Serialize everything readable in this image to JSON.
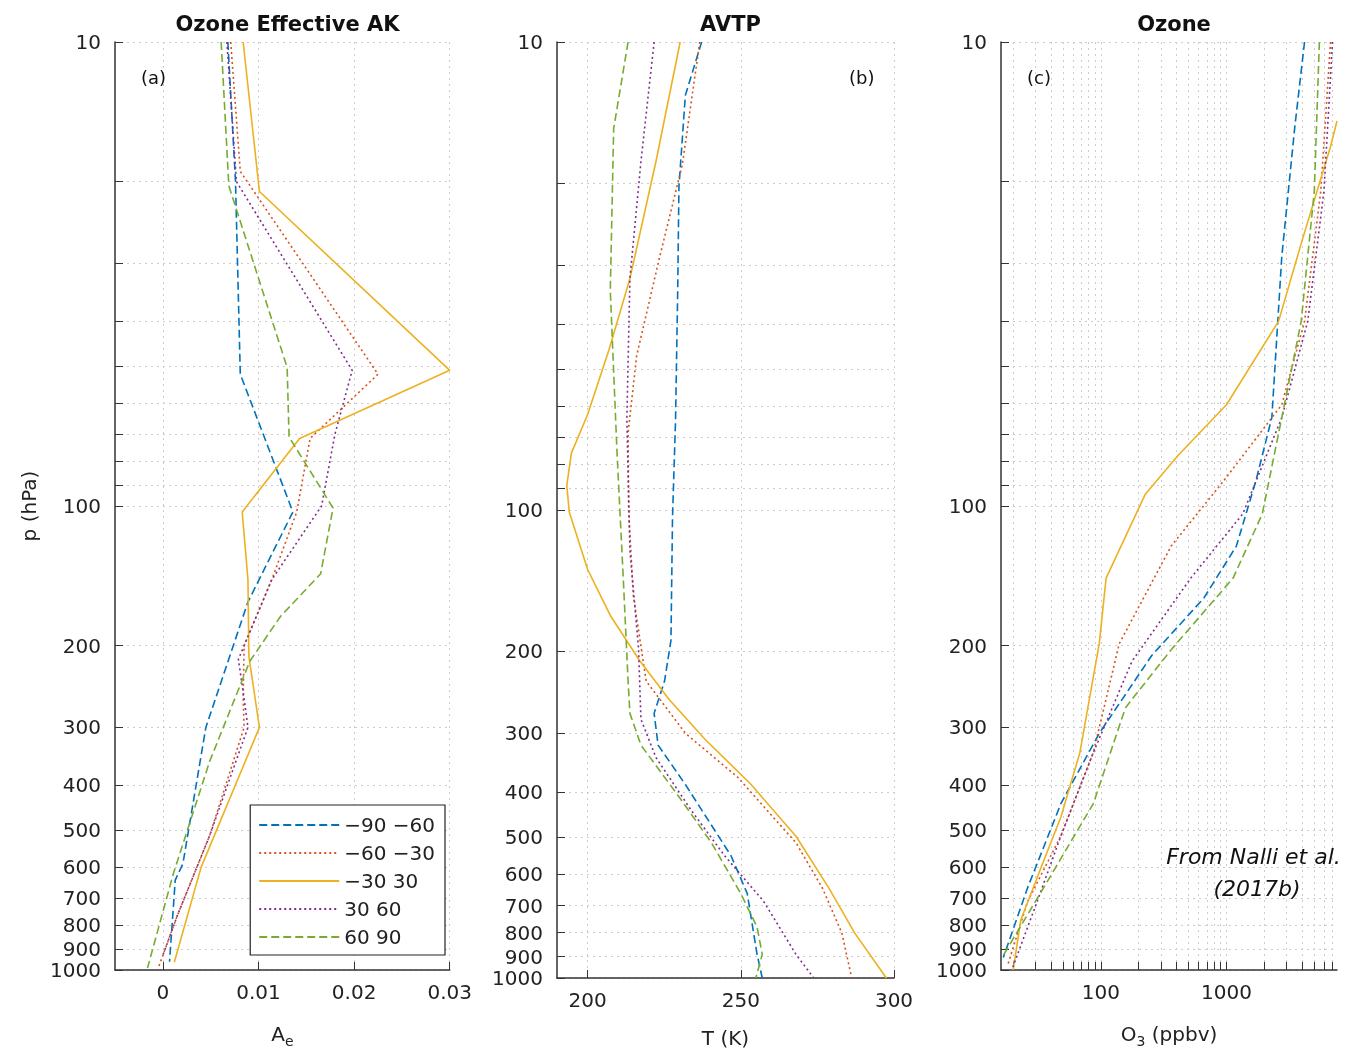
{
  "chart_data": [
    {
      "type": "line",
      "title": "Ozone Effective AK",
      "xlabel": "A$_{e}$",
      "ylabel": "p (hPa)",
      "log": "y",
      "xlim": [
        -0.005,
        0.03
      ],
      "xticks": [
        0,
        0.01,
        0.02,
        0.03
      ],
      "ylim": [
        1000,
        10
      ],
      "yticks": [
        10,
        {
          "value": 20,
          "label": null
        },
        {
          "value": 30,
          "label": null
        },
        {
          "value": 40,
          "label": null
        },
        {
          "value": 50,
          "label": null
        },
        {
          "value": 60,
          "label": null
        },
        {
          "value": 70,
          "label": null
        },
        {
          "value": 80,
          "label": null
        },
        {
          "value": 90,
          "label": null
        },
        100,
        200,
        300,
        400,
        500,
        600,
        700,
        800,
        900,
        1000
      ],
      "grid": true,
      "legend": "bottom right",
      "marker": "none",
      "annotations": [
        "(a)"
      ],
      "series": [
        {
          "name": "−90 −60",
          "color": "#0072bd",
          "line_style": "dashed",
          "x": [
            0.0068,
            0.0076,
            0.0081,
            0.0136,
            0.0089,
            0.0045,
            0.0021,
            0.0013,
            0.0007
          ],
          "values": [
            10,
            20,
            52,
            103,
            161,
            300,
            590,
            640,
            960
          ]
        },
        {
          "name": "−60 −30",
          "color": "#d95319",
          "line_style": "dotted",
          "x": [
            0.0071,
            0.0081,
            0.0225,
            0.0154,
            0.014,
            0.0114,
            0.0085,
            0.0084,
            0.0085,
            0.0049,
            0.0015,
            -0.0004
          ],
          "values": [
            10,
            19,
            52,
            71.5,
            103,
            144,
            200,
            261,
            300,
            513,
            765,
            980
          ]
        },
        {
          "name": "−30 30",
          "color": "#edb120",
          "line_style": "solid",
          "x": [
            0.0084,
            0.0101,
            0.03,
            0.0143,
            0.0083,
            0.0089,
            0.009,
            0.0101,
            0.004,
            0.0012
          ],
          "values": [
            10,
            21,
            51,
            71.5,
            103,
            144,
            211,
            300,
            601,
            962
          ]
        },
        {
          "name": "30 60",
          "color": "#7e2f8e",
          "line_style": "dotted",
          "x": [
            0.0067,
            0.0077,
            0.0198,
            0.018,
            0.0166,
            0.0114,
            0.0079,
            0.0085,
            0.0089,
            0.0049,
            0.0015,
            0.0
          ],
          "values": [
            10,
            20,
            51,
            70,
            100,
            144,
            214,
            260,
            300,
            513,
            765,
            930
          ]
        },
        {
          "name": "60 90",
          "color": "#77ac30",
          "line_style": "dashed",
          "x": [
            0.0061,
            0.0069,
            0.013,
            0.0132,
            0.0178,
            0.0165,
            0.0123,
            0.0091,
            0.0049,
            0.0011,
            -0.0016
          ],
          "values": [
            10,
            20.4,
            50.3,
            71,
            101,
            140,
            173,
            216,
            355,
            620,
            990
          ]
        }
      ]
    },
    {
      "type": "line",
      "title": "AVTP",
      "xlabel": "T (K)",
      "log": "y",
      "xlim": [
        190,
        300
      ],
      "xticks": [
        200,
        250,
        300
      ],
      "ylim": [
        1000,
        10
      ],
      "yticks": [
        10,
        {
          "value": 20,
          "label": null
        },
        {
          "value": 30,
          "label": null
        },
        {
          "value": 40,
          "label": null
        },
        {
          "value": 50,
          "label": null
        },
        {
          "value": 60,
          "label": null
        },
        {
          "value": 70,
          "label": null
        },
        {
          "value": 80,
          "label": null
        },
        {
          "value": 90,
          "label": null
        },
        100,
        200,
        300,
        400,
        500,
        600,
        700,
        800,
        900,
        1000
      ],
      "grid": true,
      "marker": "none",
      "annotations": [
        "(b)"
      ],
      "series": [
        {
          "color": "#0072bd",
          "line_style": "dashed",
          "x": [
            237.2,
            231.9,
            229.8,
            229.4,
            228.7,
            227.7,
            227.2,
            225.1,
            221.7,
            223,
            231.9,
            246.8,
            252.1,
            255.3,
            257
          ],
          "values": [
            10,
            13,
            20.4,
            34,
            64,
            104,
            190,
            232,
            272,
            318,
            386,
            548,
            660,
            890,
            1000
          ]
        },
        {
          "color": "#d95319",
          "line_style": "dotted",
          "x": [
            236.6,
            230.9,
            223.4,
            216,
            213.2,
            213.4,
            214.9,
            219.1,
            231.9,
            248.9,
            268,
            276.6,
            283,
            286.2
          ],
          "values": [
            10,
            18.3,
            29,
            46.8,
            68.5,
            101,
            152,
            232,
            300,
            372,
            514,
            642,
            802,
            1000
          ]
        },
        {
          "color": "#edb120",
          "line_style": "solid",
          "x": [
            230.2,
            222.3,
            213.8,
            207,
            200,
            194.7,
            193.2,
            194,
            200,
            207.4,
            217,
            226.6,
            238.3,
            253.2,
            268,
            278.7,
            287.2,
            297.5
          ],
          "values": [
            10,
            18,
            32,
            45.4,
            62.5,
            75.6,
            88.6,
            101,
            134,
            168,
            210,
            254,
            309,
            385,
            498,
            642,
            802,
            1000
          ]
        },
        {
          "color": "#7e2f8e",
          "line_style": "dotted",
          "x": [
            221.7,
            217.4,
            213.8,
            212.8,
            213.8,
            216.6,
            217.4,
            222.3,
            234,
            244.7,
            257.4,
            268,
            273.8
          ],
          "values": [
            10,
            18,
            32,
            64,
            122,
            197,
            280,
            338,
            440,
            548,
            685,
            890,
            1000
          ]
        },
        {
          "color": "#77ac30",
          "line_style": "dashed",
          "x": [
            213.2,
            208.5,
            207.4,
            209.6,
            211.7,
            213.2,
            213.8,
            217.4,
            229.8,
            240.4,
            250,
            255.3,
            257,
            254.9
          ],
          "values": [
            10,
            15.3,
            34,
            75.6,
            143,
            232,
            272,
            318,
            410,
            514,
            660,
            778,
            890,
            1000
          ]
        }
      ]
    },
    {
      "type": "line",
      "title": "Ozone",
      "xlabel": "O$_{3}$ (ppbv)",
      "log": "xy",
      "xlim": [
        16,
        7600
      ],
      "xticks": [
        {
          "value": 20,
          "label": null
        },
        {
          "value": 30,
          "label": null
        },
        {
          "value": 40,
          "label": null
        },
        {
          "value": 50,
          "label": null
        },
        {
          "value": 60,
          "label": null
        },
        {
          "value": 70,
          "label": null
        },
        {
          "value": 80,
          "label": null
        },
        {
          "value": 90,
          "label": null
        },
        100,
        {
          "value": 200,
          "label": null
        },
        {
          "value": 300,
          "label": null
        },
        {
          "value": 400,
          "label": null
        },
        {
          "value": 500,
          "label": null
        },
        {
          "value": 600,
          "label": null
        },
        {
          "value": 700,
          "label": null
        },
        {
          "value": 800,
          "label": null
        },
        {
          "value": 900,
          "label": null
        },
        1000,
        {
          "value": 2000,
          "label": null
        },
        {
          "value": 3000,
          "label": null
        },
        {
          "value": 4000,
          "label": null
        },
        {
          "value": 5000,
          "label": null
        },
        {
          "value": 6000,
          "label": null
        },
        {
          "value": 7000,
          "label": null
        }
      ],
      "ylim": [
        1000,
        10
      ],
      "yticks": [
        10,
        {
          "value": 20,
          "label": null
        },
        {
          "value": 30,
          "label": null
        },
        {
          "value": 40,
          "label": null
        },
        {
          "value": 50,
          "label": null
        },
        {
          "value": 60,
          "label": null
        },
        {
          "value": 70,
          "label": null
        },
        {
          "value": 80,
          "label": null
        },
        {
          "value": 90,
          "label": null
        },
        100,
        200,
        300,
        400,
        500,
        600,
        700,
        800,
        900,
        1000
      ],
      "grid": true,
      "marker": "none",
      "annotations": [
        "(c)",
        "From Nalli et al. (2017b)"
      ],
      "series": [
        {
          "color": "#0072bd",
          "line_style": "dashed",
          "x": [
            4190,
            3500,
            2760,
            2300,
            1710,
            1200,
            660,
            254,
            97,
            48,
            26,
            16.7
          ],
          "values": [
            10,
            15.3,
            29,
            64.5,
            88.6,
            122,
            158,
            210,
            309,
            438,
            666,
            940
          ]
        },
        {
          "color": "#d95319",
          "line_style": "dotted",
          "x": [
            6750,
            5640,
            4190,
            2760,
            940,
            363,
            140,
            87,
            48,
            26,
            18
          ],
          "values": [
            10,
            21,
            40,
            60.5,
            88.6,
            122,
            198,
            340,
            514,
            713,
            980
          ]
        },
        {
          "color": "#edb120",
          "line_style": "solid",
          "x": [
            7600,
            6750,
            3940,
            2600,
            1000,
            408,
            225,
            110,
            97,
            68,
            48,
            33,
            23,
            20
          ],
          "values": [
            14.8,
            16.8,
            27.2,
            40,
            60.5,
            78,
            94.5,
            143,
            198,
            340,
            468,
            606,
            780,
            1000
          ]
        },
        {
          "color": "#7e2f8e",
          "line_style": "dotted",
          "x": [
            7000,
            5980,
            4440,
            2760,
            1350,
            520,
            177,
            87,
            48,
            31,
            19.5
          ],
          "values": [
            10,
            21,
            40,
            64.5,
            104,
            143,
            216,
            340,
            514,
            713,
            1000
          ]
        },
        {
          "color": "#77ac30",
          "line_style": "dashed",
          "x": [
            5500,
            5010,
            3940,
            2760,
            1930,
            1130,
            363,
            157,
            87,
            38,
            16.3
          ],
          "values": [
            10,
            21,
            40,
            64.5,
            104,
            143,
            204,
            272,
            438,
            640,
            940
          ]
        }
      ]
    }
  ]
}
